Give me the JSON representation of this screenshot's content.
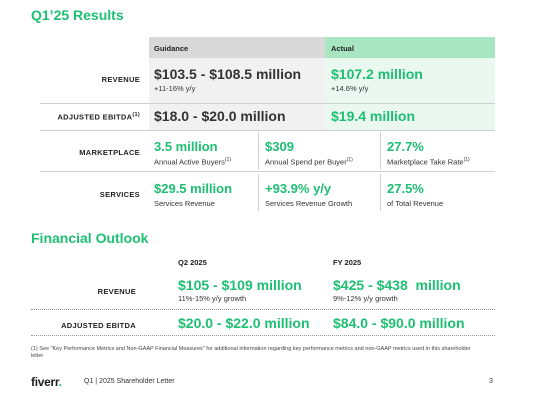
{
  "results": {
    "title": "Q1’25 Results",
    "col_guidance": "Guidance",
    "col_actual": "Actual",
    "revenue": {
      "label": "REVENUE",
      "guidance": "$103.5 - $108.5 million",
      "guidance_sub": "+11-16% y/y",
      "actual": "$107.2 million",
      "actual_sub": "+14.6% y/y"
    },
    "ebitda": {
      "label": "ADJUSTED EBITDA",
      "label_sup": "(1)",
      "guidance": "$18.0 - $20.0 million",
      "actual": "$19.4 million"
    },
    "marketplace": {
      "label": "MARKETPLACE",
      "items": [
        {
          "value": "3.5 million",
          "caption": "Annual Active Buyers",
          "sup": "(1)"
        },
        {
          "value": "$309",
          "caption": "Annual Spend per Buyer",
          "sup": "(1)"
        },
        {
          "value": "27.7%",
          "caption": "Marketplace Take Rate",
          "sup": "(1)"
        }
      ]
    },
    "services": {
      "label": "SERVICES",
      "items": [
        {
          "value": "$29.5 million",
          "caption": "Services Revenue"
        },
        {
          "value": "+93.9% y/y",
          "caption": "Services Revenue Growth"
        },
        {
          "value": "27.5%",
          "caption": "of Total Revenue"
        }
      ]
    }
  },
  "outlook": {
    "title": "Financial Outlook",
    "col_q2": "Q2 2025",
    "col_fy": "FY 2025",
    "revenue": {
      "label": "REVENUE",
      "q2": "$105 - $109 million",
      "q2_sub": "11%-15% y/y growth",
      "fy": "$425 - $438  million",
      "fy_sub": "9%-12% y/y growth"
    },
    "ebitda": {
      "label": "ADJUSTED EBITDA",
      "q2": "$20.0 - $22.0 million",
      "fy": "$84.0 - $90.0 million"
    }
  },
  "footnote": "(1) See \"Key Performance Metrics and Non-GAAP Financial Measures\" for additional information regarding key performance metrics and non-GAAP metrics used in this shareholder letter",
  "footer": {
    "logo": "fiverr",
    "logo_dot": ".",
    "text": "Q1 | 2025 Shareholder Letter",
    "page": "3"
  },
  "colors": {
    "accent": "#1dbf73",
    "guidance_header": "#d9d9d9",
    "actual_header": "#a8e6c2"
  }
}
